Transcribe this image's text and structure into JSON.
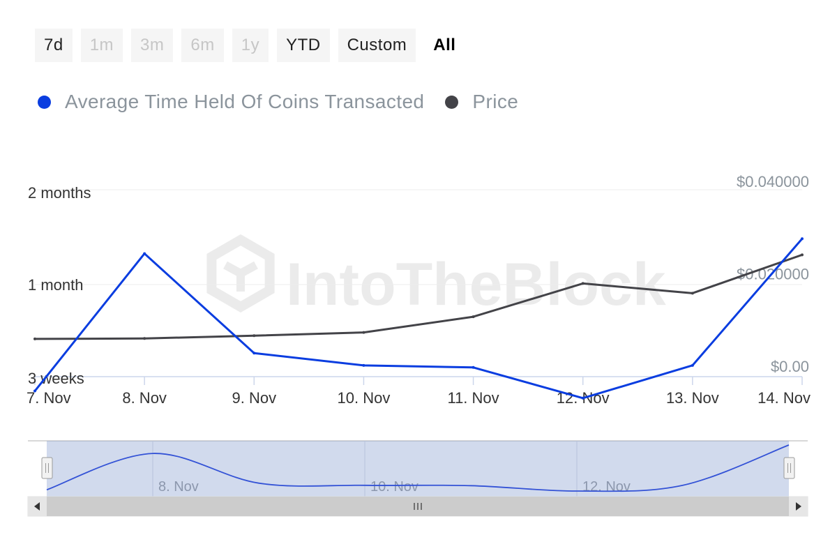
{
  "range_selector": {
    "buttons": [
      {
        "label": "7d",
        "state": "normal"
      },
      {
        "label": "1m",
        "state": "disabled"
      },
      {
        "label": "3m",
        "state": "disabled"
      },
      {
        "label": "6m",
        "state": "disabled"
      },
      {
        "label": "1y",
        "state": "disabled"
      },
      {
        "label": "YTD",
        "state": "normal"
      },
      {
        "label": "Custom",
        "state": "normal"
      },
      {
        "label": "All",
        "state": "selected"
      }
    ]
  },
  "watermark": "IntoTheBlock",
  "chart_data": {
    "type": "line",
    "categories": [
      "7. Nov",
      "8. Nov",
      "9. Nov",
      "10. Nov",
      "11. Nov",
      "12. Nov",
      "13. Nov",
      "14. Nov"
    ],
    "series": [
      {
        "name": "Average Time Held Of Coins Transacted",
        "color": "#0a3de0",
        "axis": "left",
        "values": [
          19.6,
          39.8,
          23.3,
          22.1,
          21.9,
          18.9,
          22.1,
          44.5
        ],
        "unit": "days"
      },
      {
        "name": "Price",
        "color": "#434348",
        "axis": "right",
        "values": [
          0.0059,
          0.006,
          0.0066,
          0.0073,
          0.0107,
          0.0179,
          0.0158,
          0.0241
        ],
        "unit": "USD"
      }
    ],
    "y_left": {
      "ticks": [
        {
          "value": 21,
          "label": "3 weeks"
        },
        {
          "value": 30,
          "label": "1 month"
        },
        {
          "value": 60,
          "label": "2 months"
        }
      ]
    },
    "y_right": {
      "ticks": [
        {
          "value": 0,
          "label": "$0.00"
        },
        {
          "value": 0.02,
          "label": "$0.020000"
        },
        {
          "value": 0.04,
          "label": "$0.040000"
        }
      ],
      "ylim": [
        0,
        0.04
      ]
    },
    "legend_position": "top-left",
    "grid": true,
    "navigator": {
      "labels": [
        "8. Nov",
        "10. Nov",
        "12. Nov"
      ],
      "handle_icon": "grip-handle-icon",
      "scroll_left_icon": "arrow-left-icon",
      "scroll_right_icon": "arrow-right-icon",
      "scroll_thumb_icon": "grip-lines-icon"
    }
  }
}
